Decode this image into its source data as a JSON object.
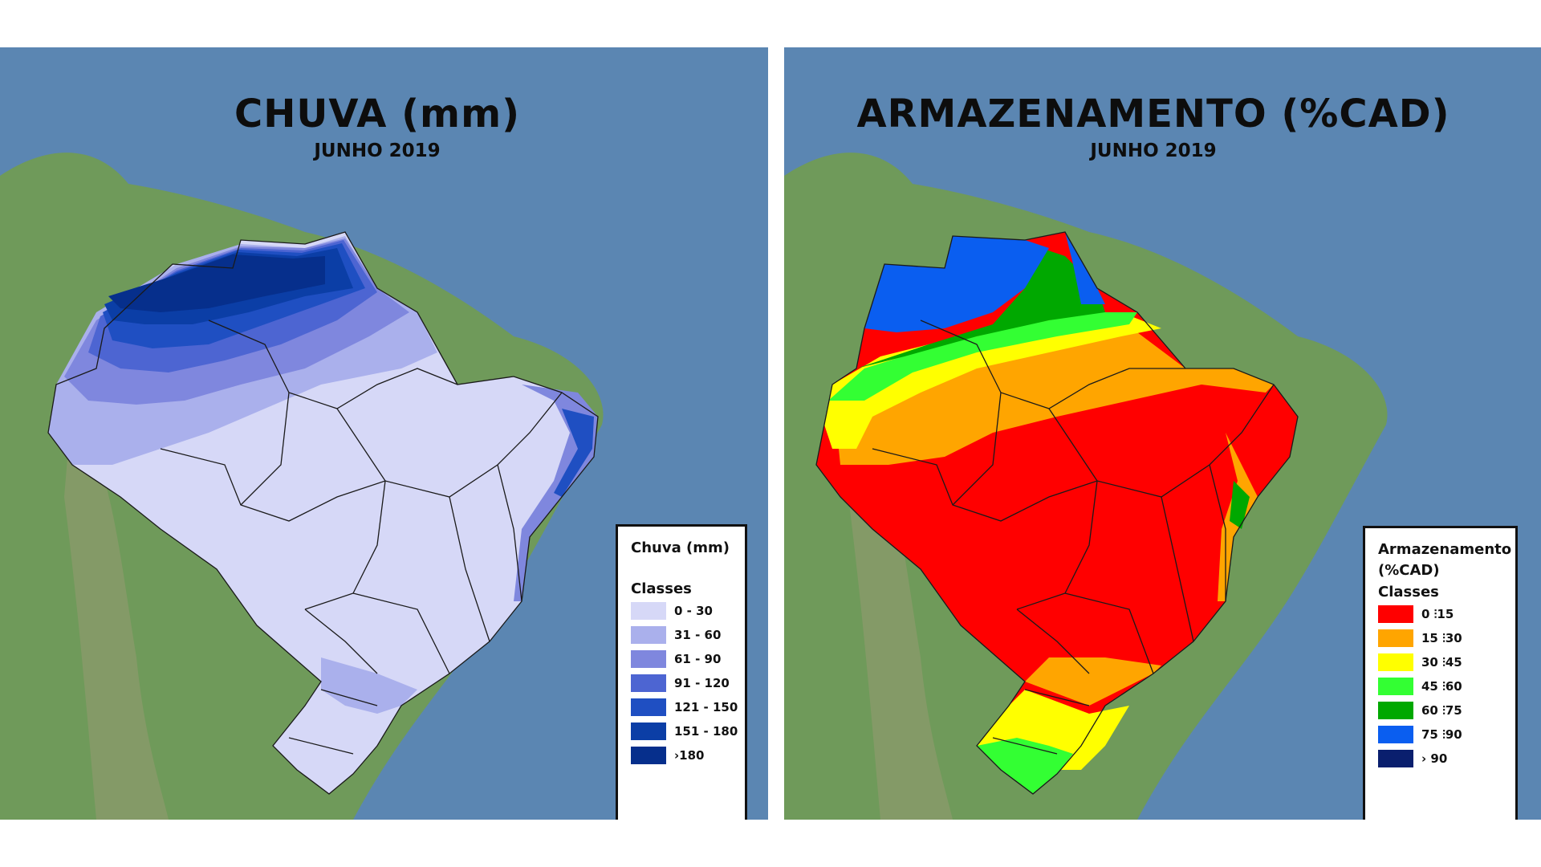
{
  "maps": [
    {
      "title": "CHUVA (mm)",
      "subtitle": "JUNHO 2019",
      "legend": {
        "title": "Chuva (mm)",
        "classes_label": "Classes",
        "items": [
          {
            "range": "0 - 30",
            "color": "#d6d8f7"
          },
          {
            "range": "31 - 60",
            "color": "#aab0ec"
          },
          {
            "range": "61 - 90",
            "color": "#7f87de"
          },
          {
            "range": "91 - 120",
            "color": "#4d65d2"
          },
          {
            "range": "121 - 150",
            "color": "#1f4fc2"
          },
          {
            "range": "151 - 180",
            "color": "#0b3ea6"
          },
          {
            "range": "›180",
            "color": "#062f8c"
          }
        ]
      }
    },
    {
      "title": "ARMAZENAMENTO (%CAD)",
      "subtitle": "JUNHO 2019",
      "legend": {
        "title": "Armazenamento (%CAD)",
        "classes_label": "Classes",
        "items": [
          {
            "range": "0 ⫶15",
            "color": "#ff0000"
          },
          {
            "range": "15 ⫶30",
            "color": "#ffa500"
          },
          {
            "range": "30 ⫶45",
            "color": "#ffff00"
          },
          {
            "range": "45 ⫶60",
            "color": "#33ff33"
          },
          {
            "range": "60 ⫶75",
            "color": "#00a800"
          },
          {
            "range": "75 ⫶90",
            "color": "#0a5ef0"
          },
          {
            "range": "› 90",
            "color": "#0a1f6e"
          }
        ]
      }
    }
  ],
  "colors": {
    "ocean": "#5b86b2",
    "land": "#6f9a5a",
    "land_dark": "#4f7a45",
    "border_lines": "#1a1a1a"
  }
}
